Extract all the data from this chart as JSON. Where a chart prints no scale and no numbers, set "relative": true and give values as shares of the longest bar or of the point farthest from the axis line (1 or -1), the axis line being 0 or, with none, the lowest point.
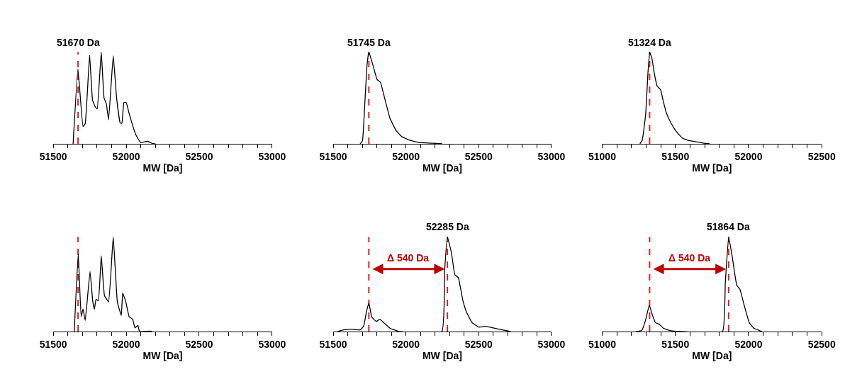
{
  "chart_data": [
    {
      "type": "line",
      "relative": true,
      "xlabel": "MW [Da]",
      "xlim": [
        51500,
        53000
      ],
      "xticks": [
        51500,
        {
          "value": 51600,
          "label": null
        },
        {
          "value": 51700,
          "label": null
        },
        {
          "value": 51800,
          "label": null
        },
        {
          "value": 51900,
          "label": null
        },
        52000,
        {
          "value": 52100,
          "label": null
        },
        {
          "value": 52200,
          "label": null
        },
        {
          "value": 52300,
          "label": null
        },
        {
          "value": 52400,
          "label": null
        },
        52500,
        {
          "value": 52600,
          "label": null
        },
        {
          "value": 52700,
          "label": null
        },
        {
          "value": 52800,
          "label": null
        },
        {
          "value": 52900,
          "label": null
        },
        53000
      ],
      "x": [
        51636,
        51669,
        51704,
        51719,
        51749,
        51769,
        51785,
        51801,
        51829,
        51848,
        51864,
        51879,
        51911,
        51934,
        51958,
        51970,
        51984,
        52000,
        52020,
        52044,
        52067,
        52099,
        52146,
        52177,
        52200
      ],
      "series": [
        {
          "color": "#000000",
          "values": [
            0,
            0.815,
            0.19,
            0.22,
            0.965,
            0.476,
            0.41,
            0.38,
            1,
            0.5,
            0.435,
            0.26,
            0.96,
            0.5,
            0.23,
            0.22,
            0.45,
            0.45,
            0.33,
            0.2,
            0.095,
            0.014,
            0.027,
            0.005,
            0
          ]
        }
      ],
      "ref_lines": [
        {
          "axis": "x",
          "value": 51670,
          "label": "51670 Da",
          "color": "#e0201e",
          "line_style": "dashed"
        }
      ]
    },
    {
      "type": "line",
      "relative": true,
      "xlabel": "MW [Da]",
      "xlim": [
        51500,
        53000
      ],
      "xticks": [
        51500,
        {
          "value": 51600,
          "label": null
        },
        {
          "value": 51700,
          "label": null
        },
        {
          "value": 51800,
          "label": null
        },
        {
          "value": 51900,
          "label": null
        },
        52000,
        {
          "value": 52100,
          "label": null
        },
        {
          "value": 52200,
          "label": null
        },
        {
          "value": 52300,
          "label": null
        },
        {
          "value": 52400,
          "label": null
        },
        52500,
        {
          "value": 52600,
          "label": null
        },
        {
          "value": 52700,
          "label": null
        },
        {
          "value": 52800,
          "label": null
        },
        {
          "value": 52900,
          "label": null
        },
        53000
      ],
      "x": [
        51685,
        51701,
        51715,
        51732,
        51745,
        51770,
        51802,
        51825,
        51850,
        51890,
        51930,
        51970,
        52025,
        52090,
        52188,
        52250
      ],
      "series": [
        {
          "color": "#000000",
          "values": [
            0,
            0.03,
            0.37,
            0.85,
            1,
            0.875,
            0.7,
            0.67,
            0.52,
            0.28,
            0.15,
            0.08,
            0.039,
            0.015,
            0.006,
            0
          ]
        }
      ],
      "ref_lines": [
        {
          "axis": "x",
          "value": 51745,
          "label": "51745 Da",
          "color": "#e0201e",
          "line_style": "dashed"
        }
      ]
    },
    {
      "type": "line",
      "relative": true,
      "xlabel": "MW [Da]",
      "xlim": [
        51000,
        52500
      ],
      "xticks": [
        51000,
        {
          "value": 51100,
          "label": null
        },
        {
          "value": 51200,
          "label": null
        },
        {
          "value": 51300,
          "label": null
        },
        {
          "value": 51400,
          "label": null
        },
        51500,
        {
          "value": 51600,
          "label": null
        },
        {
          "value": 51700,
          "label": null
        },
        {
          "value": 51800,
          "label": null
        },
        {
          "value": 51900,
          "label": null
        },
        52000,
        {
          "value": 52100,
          "label": null
        },
        {
          "value": 52200,
          "label": null
        },
        {
          "value": 52300,
          "label": null
        },
        {
          "value": 52400,
          "label": null
        },
        52500
      ],
      "x": [
        51258,
        51274,
        51297,
        51313,
        51325,
        51341,
        51357,
        51375,
        51399,
        51415,
        51438,
        51469,
        51508,
        51548,
        51595,
        51641,
        51688,
        51735
      ],
      "series": [
        {
          "color": "#000000",
          "values": [
            0,
            0.04,
            0.32,
            0.78,
            1,
            0.92,
            0.76,
            0.63,
            0.59,
            0.48,
            0.34,
            0.23,
            0.13,
            0.063,
            0.035,
            0.023,
            0.009,
            0
          ]
        }
      ],
      "ref_lines": [
        {
          "axis": "x",
          "value": 51324,
          "label": "51324 Da",
          "color": "#e0201e",
          "line_style": "dashed"
        }
      ]
    },
    {
      "type": "line",
      "relative": true,
      "xlabel": "MW [Da]",
      "xlim": [
        51500,
        53000
      ],
      "xticks": [
        51500,
        {
          "value": 51600,
          "label": null
        },
        {
          "value": 51700,
          "label": null
        },
        {
          "value": 51800,
          "label": null
        },
        {
          "value": 51900,
          "label": null
        },
        52000,
        {
          "value": 52100,
          "label": null
        },
        {
          "value": 52200,
          "label": null
        },
        {
          "value": 52300,
          "label": null
        },
        {
          "value": 52400,
          "label": null
        },
        52500,
        {
          "value": 52600,
          "label": null
        },
        {
          "value": 52700,
          "label": null
        },
        {
          "value": 52800,
          "label": null
        },
        {
          "value": 52900,
          "label": null
        },
        53000
      ],
      "x": [
        51644,
        51671,
        51691,
        51704,
        51719,
        51752,
        51770,
        51782,
        51793,
        51809,
        51829,
        51851,
        51879,
        51911,
        51939,
        51966,
        51976,
        51997,
        52020,
        52044,
        52060,
        52080,
        52091,
        52161,
        52177
      ],
      "series": [
        {
          "color": "#000000",
          "values": [
            0,
            0.825,
            0.157,
            0.236,
            0.118,
            0.634,
            0.327,
            0.236,
            0.34,
            0.327,
            0.8,
            0.38,
            0.314,
            1,
            0.314,
            0.17,
            0.406,
            0.314,
            0.157,
            0.13,
            0.039,
            0.065,
            0,
            0.005,
            0
          ]
        }
      ],
      "ref_lines": [
        {
          "axis": "x",
          "value": 51670,
          "color": "#e0201e",
          "line_style": "dashed"
        }
      ]
    },
    {
      "type": "line",
      "relative": true,
      "xlabel": "MW [Da]",
      "xlim": [
        51500,
        53000
      ],
      "xticks": [
        51500,
        {
          "value": 51600,
          "label": null
        },
        {
          "value": 51700,
          "label": null
        },
        {
          "value": 51800,
          "label": null
        },
        {
          "value": 51900,
          "label": null
        },
        52000,
        {
          "value": 52100,
          "label": null
        },
        {
          "value": 52200,
          "label": null
        },
        {
          "value": 52300,
          "label": null
        },
        {
          "value": 52400,
          "label": null
        },
        52500,
        {
          "value": 52600,
          "label": null
        },
        {
          "value": 52700,
          "label": null
        },
        {
          "value": 52800,
          "label": null
        },
        {
          "value": 52900,
          "label": null
        },
        53000
      ],
      "x": [
        51530,
        51577,
        51624,
        51687,
        51710,
        51726,
        51745,
        51765,
        51796,
        51820,
        51843,
        51890,
        51953,
        52247,
        52266,
        52285,
        52313,
        52336,
        52360,
        52391,
        52415,
        52454,
        52501,
        52548,
        52595,
        52657,
        52720
      ],
      "series": [
        {
          "color": "#000000",
          "values": [
            0,
            0.019,
            0.024,
            0.019,
            0.059,
            0.19,
            0.3,
            0.154,
            0.107,
            0.13,
            0.1,
            0.036,
            0,
            0,
            0.64,
            1,
            0.83,
            0.6,
            0.57,
            0.33,
            0.21,
            0.095,
            0.047,
            0.055,
            0.04,
            0.019,
            0
          ]
        }
      ],
      "ref_lines": [
        {
          "axis": "x",
          "value": 51745,
          "color": "#e0201e",
          "line_style": "dashed"
        },
        {
          "axis": "x",
          "value": 52285,
          "label": "52285 Da",
          "color": "#e0201e",
          "line_style": "dashed"
        }
      ],
      "annotations": [
        "Δ 540 Da"
      ]
    },
    {
      "type": "line",
      "relative": true,
      "xlabel": "MW [Da]",
      "xlim": [
        51000,
        52500
      ],
      "xticks": [
        51000,
        {
          "value": 51100,
          "label": null
        },
        {
          "value": 51200,
          "label": null
        },
        {
          "value": 51300,
          "label": null
        },
        {
          "value": 51400,
          "label": null
        },
        51500,
        {
          "value": 51600,
          "label": null
        },
        {
          "value": 51700,
          "label": null
        },
        {
          "value": 51800,
          "label": null
        },
        {
          "value": 51900,
          "label": null
        },
        52000,
        {
          "value": 52100,
          "label": null
        },
        {
          "value": 52200,
          "label": null
        },
        {
          "value": 52300,
          "label": null
        },
        {
          "value": 52400,
          "label": null
        },
        52500
      ],
      "x": [
        51231,
        51270,
        51296,
        51322,
        51340,
        51364,
        51390,
        51418,
        51458,
        51528,
        51822,
        51841,
        51864,
        51888,
        51919,
        51942,
        51966,
        52005,
        52036,
        52091
      ],
      "series": [
        {
          "color": "#000000",
          "values": [
            0,
            0.012,
            0.117,
            0.28,
            0.187,
            0.093,
            0.077,
            0.035,
            0.012,
            0,
            0,
            0.514,
            1,
            0.794,
            0.49,
            0.444,
            0.3,
            0.093,
            0.035,
            0
          ]
        }
      ],
      "ref_lines": [
        {
          "axis": "x",
          "value": 51324,
          "color": "#e0201e",
          "line_style": "dashed"
        },
        {
          "axis": "x",
          "value": 51864,
          "label": "51864 Da",
          "color": "#e0201e",
          "line_style": "dashed"
        }
      ],
      "annotations": [
        "Δ 540 Da"
      ]
    }
  ]
}
